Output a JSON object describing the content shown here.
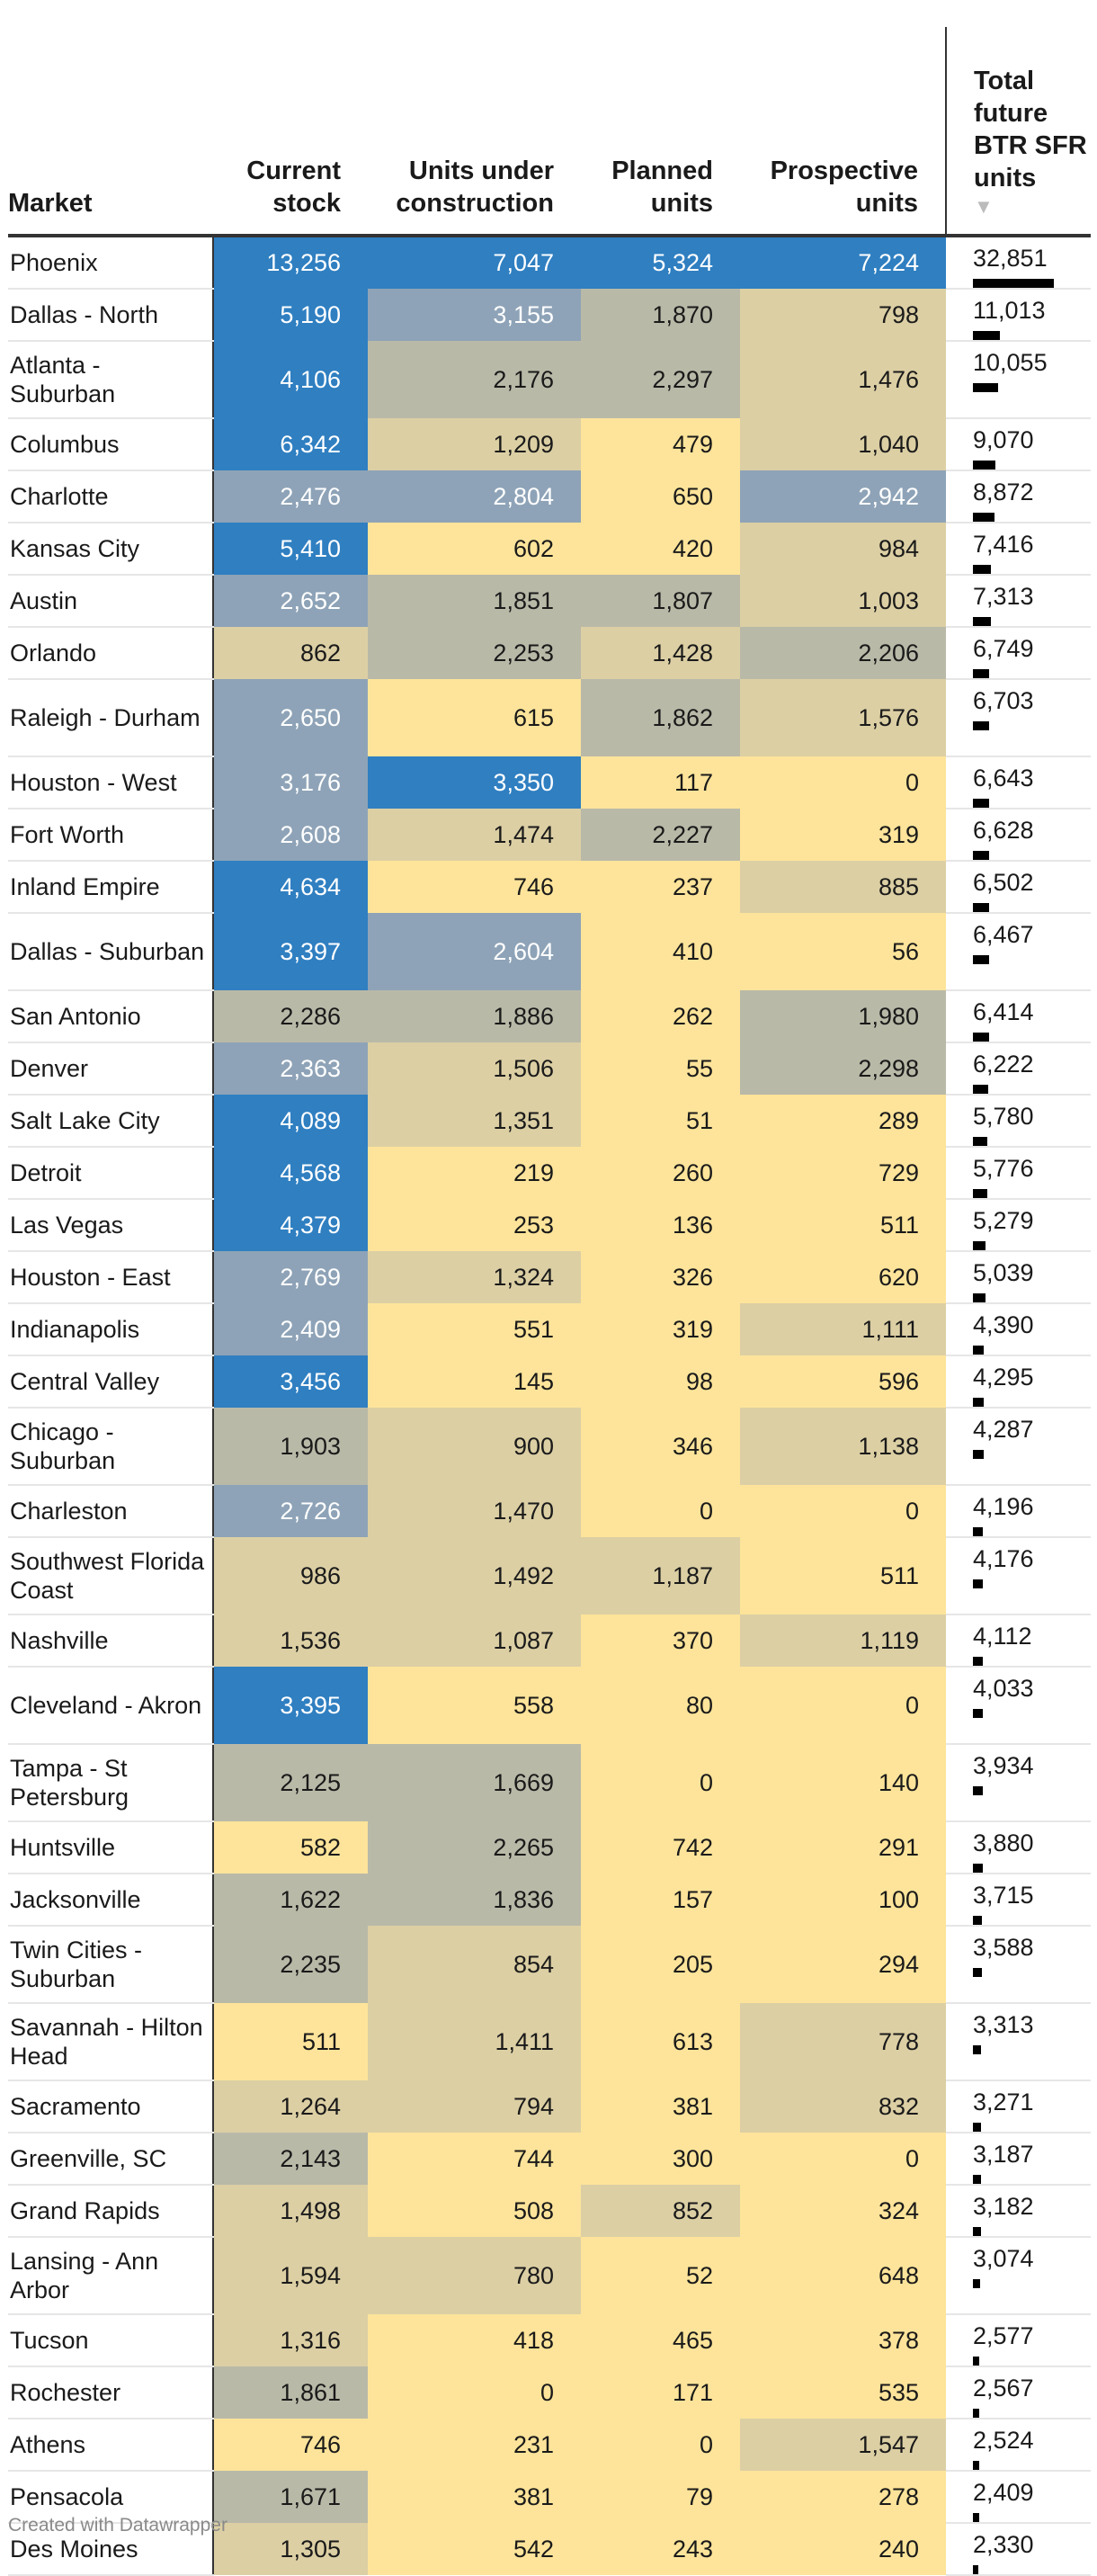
{
  "chart_data": {
    "type": "table",
    "columns": [
      "Market",
      "Current stock",
      "Units under construction",
      "Planned units",
      "Prospective units",
      "Total future BTR SFR units"
    ],
    "sort_indicator": "▼",
    "sorted_by": "Total future BTR SFR units",
    "sort_direction": "descending",
    "heatmap_colors": [
      "#fde49a",
      "#dccfa4",
      "#b9b9a8",
      "#8ea3b7",
      "#2f7fc1"
    ],
    "bar_color": "#000000",
    "rows": [
      {
        "market": "Phoenix",
        "current": 13256,
        "construction": 7047,
        "planned": 5324,
        "prospective": 7224,
        "total": 32851
      },
      {
        "market": "Dallas - North",
        "current": 5190,
        "construction": 3155,
        "planned": 1870,
        "prospective": 798,
        "total": 11013
      },
      {
        "market": "Atlanta - Suburban",
        "current": 4106,
        "construction": 2176,
        "planned": 2297,
        "prospective": 1476,
        "total": 10055
      },
      {
        "market": "Columbus",
        "current": 6342,
        "construction": 1209,
        "planned": 479,
        "prospective": 1040,
        "total": 9070
      },
      {
        "market": "Charlotte",
        "current": 2476,
        "construction": 2804,
        "planned": 650,
        "prospective": 2942,
        "total": 8872
      },
      {
        "market": "Kansas City",
        "current": 5410,
        "construction": 602,
        "planned": 420,
        "prospective": 984,
        "total": 7416
      },
      {
        "market": "Austin",
        "current": 2652,
        "construction": 1851,
        "planned": 1807,
        "prospective": 1003,
        "total": 7313
      },
      {
        "market": "Orlando",
        "current": 862,
        "construction": 2253,
        "planned": 1428,
        "prospective": 2206,
        "total": 6749
      },
      {
        "market": "Raleigh - Durham",
        "current": 2650,
        "construction": 615,
        "planned": 1862,
        "prospective": 1576,
        "total": 6703
      },
      {
        "market": "Houston - West",
        "current": 3176,
        "construction": 3350,
        "planned": 117,
        "prospective": 0,
        "total": 6643
      },
      {
        "market": "Fort Worth",
        "current": 2608,
        "construction": 1474,
        "planned": 2227,
        "prospective": 319,
        "total": 6628
      },
      {
        "market": "Inland Empire",
        "current": 4634,
        "construction": 746,
        "planned": 237,
        "prospective": 885,
        "total": 6502
      },
      {
        "market": "Dallas - Suburban",
        "current": 3397,
        "construction": 2604,
        "planned": 410,
        "prospective": 56,
        "total": 6467
      },
      {
        "market": "San Antonio",
        "current": 2286,
        "construction": 1886,
        "planned": 262,
        "prospective": 1980,
        "total": 6414
      },
      {
        "market": "Denver",
        "current": 2363,
        "construction": 1506,
        "planned": 55,
        "prospective": 2298,
        "total": 6222
      },
      {
        "market": "Salt Lake City",
        "current": 4089,
        "construction": 1351,
        "planned": 51,
        "prospective": 289,
        "total": 5780
      },
      {
        "market": "Detroit",
        "current": 4568,
        "construction": 219,
        "planned": 260,
        "prospective": 729,
        "total": 5776
      },
      {
        "market": "Las Vegas",
        "current": 4379,
        "construction": 253,
        "planned": 136,
        "prospective": 511,
        "total": 5279
      },
      {
        "market": "Houston - East",
        "current": 2769,
        "construction": 1324,
        "planned": 326,
        "prospective": 620,
        "total": 5039
      },
      {
        "market": "Indianapolis",
        "current": 2409,
        "construction": 551,
        "planned": 319,
        "prospective": 1111,
        "total": 4390
      },
      {
        "market": "Central Valley",
        "current": 3456,
        "construction": 145,
        "planned": 98,
        "prospective": 596,
        "total": 4295
      },
      {
        "market": "Chicago - Suburban",
        "current": 1903,
        "construction": 900,
        "planned": 346,
        "prospective": 1138,
        "total": 4287
      },
      {
        "market": "Charleston",
        "current": 2726,
        "construction": 1470,
        "planned": 0,
        "prospective": 0,
        "total": 4196
      },
      {
        "market": "Southwest Florida Coast",
        "current": 986,
        "construction": 1492,
        "planned": 1187,
        "prospective": 511,
        "total": 4176
      },
      {
        "market": "Nashville",
        "current": 1536,
        "construction": 1087,
        "planned": 370,
        "prospective": 1119,
        "total": 4112
      },
      {
        "market": "Cleveland - Akron",
        "current": 3395,
        "construction": 558,
        "planned": 80,
        "prospective": 0,
        "total": 4033
      },
      {
        "market": "Tampa - St Petersburg",
        "current": 2125,
        "construction": 1669,
        "planned": 0,
        "prospective": 140,
        "total": 3934
      },
      {
        "market": "Huntsville",
        "current": 582,
        "construction": 2265,
        "planned": 742,
        "prospective": 291,
        "total": 3880
      },
      {
        "market": "Jacksonville",
        "current": 1622,
        "construction": 1836,
        "planned": 157,
        "prospective": 100,
        "total": 3715
      },
      {
        "market": "Twin Cities - Suburban",
        "current": 2235,
        "construction": 854,
        "planned": 205,
        "prospective": 294,
        "total": 3588
      },
      {
        "market": "Savannah - Hilton Head",
        "current": 511,
        "construction": 1411,
        "planned": 613,
        "prospective": 778,
        "total": 3313
      },
      {
        "market": "Sacramento",
        "current": 1264,
        "construction": 794,
        "planned": 381,
        "prospective": 832,
        "total": 3271
      },
      {
        "market": "Greenville, SC",
        "current": 2143,
        "construction": 744,
        "planned": 300,
        "prospective": 0,
        "total": 3187
      },
      {
        "market": "Grand Rapids",
        "current": 1498,
        "construction": 508,
        "planned": 852,
        "prospective": 324,
        "total": 3182
      },
      {
        "market": "Lansing - Ann Arbor",
        "current": 1594,
        "construction": 780,
        "planned": 52,
        "prospective": 648,
        "total": 3074
      },
      {
        "market": "Tucson",
        "current": 1316,
        "construction": 418,
        "planned": 465,
        "prospective": 378,
        "total": 2577
      },
      {
        "market": "Rochester",
        "current": 1861,
        "construction": 0,
        "planned": 171,
        "prospective": 535,
        "total": 2567
      },
      {
        "market": "Athens",
        "current": 746,
        "construction": 231,
        "planned": 0,
        "prospective": 1547,
        "total": 2524
      },
      {
        "market": "Pensacola",
        "current": 1671,
        "construction": 381,
        "planned": 79,
        "prospective": 278,
        "total": 2409
      },
      {
        "market": "Des Moines",
        "current": 1305,
        "construction": 542,
        "planned": 243,
        "prospective": 240,
        "total": 2330
      }
    ]
  },
  "footer": {
    "credit": "Created with Datawrapper"
  }
}
